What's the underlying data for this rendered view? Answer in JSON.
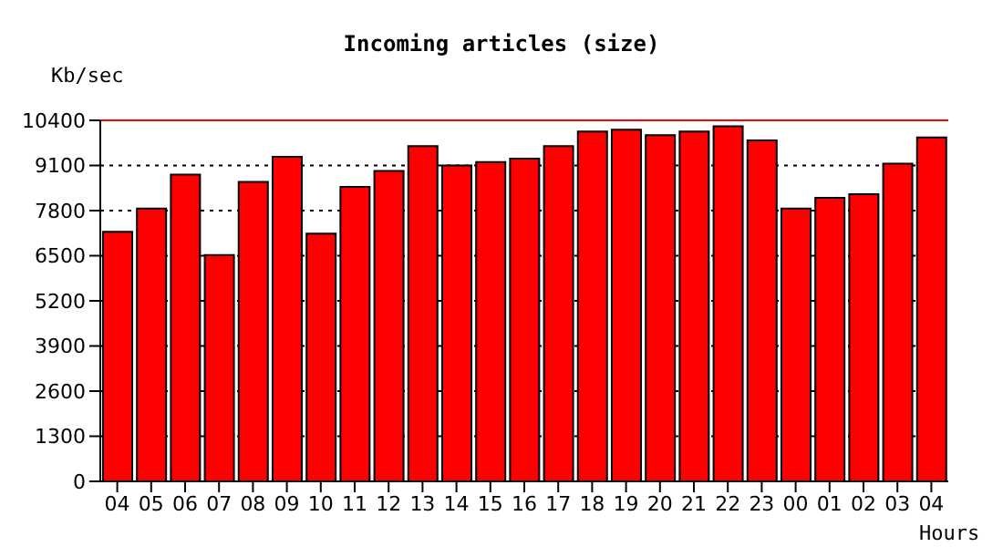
{
  "chart_data": {
    "type": "bar",
    "title": "Incoming articles (size)",
    "ylabel": "Kb/sec",
    "xlabel": "Hours",
    "categories": [
      "04",
      "05",
      "06",
      "07",
      "08",
      "09",
      "10",
      "11",
      "12",
      "13",
      "14",
      "15",
      "16",
      "17",
      "18",
      "19",
      "20",
      "21",
      "22",
      "23",
      "00",
      "01",
      "02",
      "03",
      "04"
    ],
    "values": [
      7190,
      7860,
      8840,
      6520,
      8630,
      9350,
      7140,
      8480,
      8940,
      9660,
      9100,
      9200,
      9300,
      9660,
      10080,
      10130,
      9970,
      10080,
      10230,
      9820,
      7860,
      8170,
      8270,
      9150,
      9910
    ],
    "color": "#ff0000",
    "ylim": [
      0,
      10400
    ],
    "yticks": [
      0,
      1300,
      2600,
      3900,
      5200,
      6500,
      7800,
      9100,
      10400
    ],
    "grid": "y",
    "line_style": "dotted",
    "ref_lines": [
      {
        "axis": "y",
        "value": 10400,
        "color": "#ff0000"
      }
    ]
  }
}
